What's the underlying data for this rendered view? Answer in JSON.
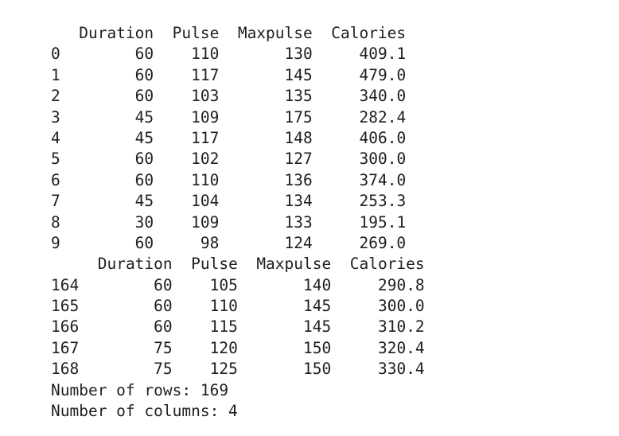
{
  "output": {
    "head": {
      "columns": [
        "Duration",
        "Pulse",
        "Maxpulse",
        "Calories"
      ],
      "rows": [
        {
          "index": "0",
          "values": [
            "60",
            "110",
            "130",
            "409.1"
          ]
        },
        {
          "index": "1",
          "values": [
            "60",
            "117",
            "145",
            "479.0"
          ]
        },
        {
          "index": "2",
          "values": [
            "60",
            "103",
            "135",
            "340.0"
          ]
        },
        {
          "index": "3",
          "values": [
            "45",
            "109",
            "175",
            "282.4"
          ]
        },
        {
          "index": "4",
          "values": [
            "45",
            "117",
            "148",
            "406.0"
          ]
        },
        {
          "index": "5",
          "values": [
            "60",
            "102",
            "127",
            "300.0"
          ]
        },
        {
          "index": "6",
          "values": [
            "60",
            "110",
            "136",
            "374.0"
          ]
        },
        {
          "index": "7",
          "values": [
            "45",
            "104",
            "134",
            "253.3"
          ]
        },
        {
          "index": "8",
          "values": [
            "30",
            "109",
            "133",
            "195.1"
          ]
        },
        {
          "index": "9",
          "values": [
            "60",
            "98",
            "124",
            "269.0"
          ]
        }
      ]
    },
    "tail": {
      "columns": [
        "Duration",
        "Pulse",
        "Maxpulse",
        "Calories"
      ],
      "rows": [
        {
          "index": "164",
          "values": [
            "60",
            "105",
            "140",
            "290.8"
          ]
        },
        {
          "index": "165",
          "values": [
            "60",
            "110",
            "145",
            "300.0"
          ]
        },
        {
          "index": "166",
          "values": [
            "60",
            "115",
            "145",
            "310.2"
          ]
        },
        {
          "index": "167",
          "values": [
            "75",
            "120",
            "150",
            "320.4"
          ]
        },
        {
          "index": "168",
          "values": [
            "75",
            "125",
            "150",
            "330.4"
          ]
        }
      ]
    },
    "rows_text": "Number of rows: 169",
    "columns_text": "Number of columns: 4"
  }
}
